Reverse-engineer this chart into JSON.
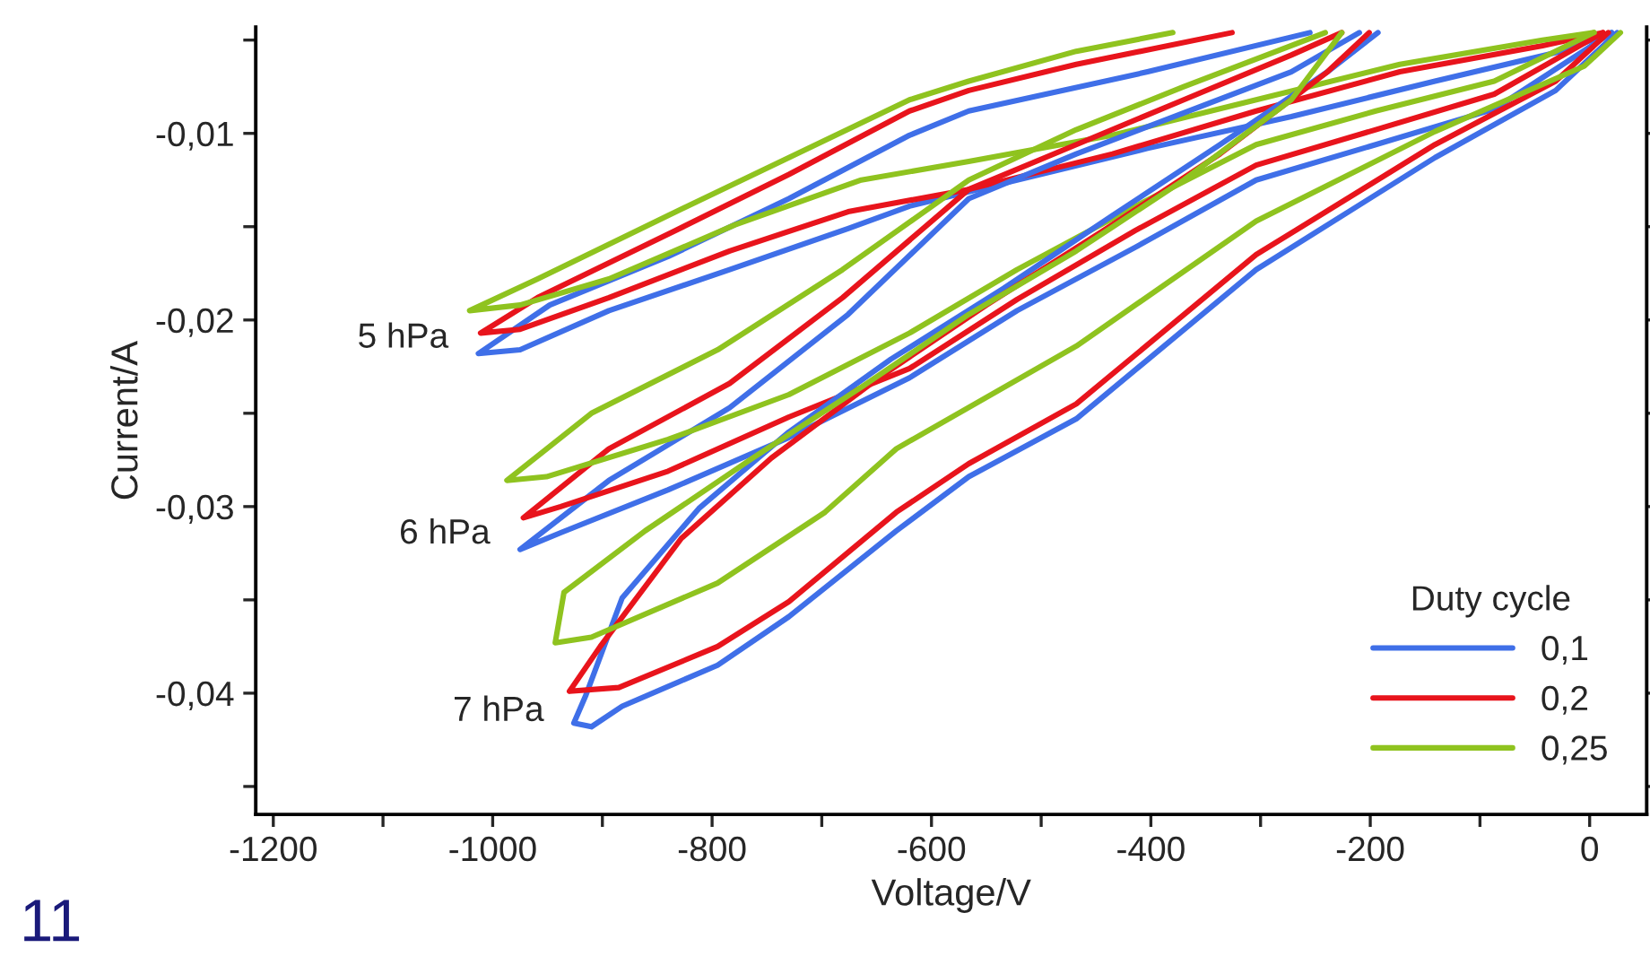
{
  "chart_data": {
    "type": "line",
    "xlabel": "Voltage/V",
    "ylabel": "Current/A",
    "legend_title": "Duty cycle",
    "legend": "bottom right",
    "xlim": [
      -1216,
      52
    ],
    "ylim": [
      -0.0465,
      -0.0043
    ],
    "xticks": [
      -1200,
      {
        "value": -1100,
        "label": null
      },
      -1000,
      {
        "value": -900,
        "label": null
      },
      -800,
      {
        "value": -700,
        "label": null
      },
      -600,
      {
        "value": -500,
        "label": null
      },
      -400,
      {
        "value": -300,
        "label": null
      },
      -200,
      {
        "value": -100,
        "label": null
      },
      0
    ],
    "yticks": [
      {
        "value": -0.045,
        "label": null
      },
      {
        "value": -0.04,
        "label": "-0,04"
      },
      {
        "value": -0.035,
        "label": null
      },
      {
        "value": -0.03,
        "label": "-0,03"
      },
      {
        "value": -0.025,
        "label": null
      },
      {
        "value": -0.02,
        "label": "-0,02"
      },
      {
        "value": -0.015,
        "label": null
      },
      {
        "value": -0.01,
        "label": "-0,01"
      },
      {
        "value": -0.005,
        "label": null
      }
    ],
    "annotations": [
      {
        "text": "5 hPa",
        "x": -1013,
        "y": -0.0218
      },
      {
        "text": "6 hPa",
        "x": -975,
        "y": -0.0323
      },
      {
        "text": "7 hPa",
        "x": -926,
        "y": -0.0418
      },
      "11"
    ],
    "series": [
      {
        "name": "0,1",
        "color": "#3f6fe8",
        "x": [
          -255,
          -403,
          -566,
          -620,
          -730,
          -840,
          -948,
          -1013,
          -975,
          -894,
          -784,
          -676,
          -620,
          -522,
          -403,
          -272,
          -141,
          -26,
          20
        ],
        "values": [
          -0.0046,
          -0.0067,
          -0.0088,
          -0.0101,
          -0.0135,
          -0.0166,
          -0.0192,
          -0.0218,
          -0.0216,
          -0.0195,
          -0.0173,
          -0.0151,
          -0.0139,
          -0.0125,
          -0.0108,
          -0.0091,
          -0.0072,
          -0.0056,
          -0.0046
        ]
      },
      {
        "name": "0,2",
        "color": "#e8141c",
        "x": [
          -326,
          -468,
          -566,
          -620,
          -730,
          -840,
          -959,
          -1011,
          -975,
          -894,
          -784,
          -676,
          -566,
          -435,
          -304,
          -173,
          -43,
          12
        ],
        "values": [
          -0.0046,
          -0.0063,
          -0.0077,
          -0.0088,
          -0.0122,
          -0.0154,
          -0.0188,
          -0.0207,
          -0.0205,
          -0.0188,
          -0.0163,
          -0.0142,
          -0.013,
          -0.0111,
          -0.0088,
          -0.0067,
          -0.0053,
          -0.0046
        ]
      },
      {
        "name": "0,25",
        "color": "#8fc31f",
        "x": [
          -380,
          -468,
          -566,
          -620,
          -730,
          -840,
          -959,
          -1021,
          -975,
          -894,
          -779,
          -664,
          -566,
          -435,
          -304,
          -173,
          -43,
          4
        ],
        "values": [
          -0.0046,
          -0.0056,
          -0.0072,
          -0.0082,
          -0.0113,
          -0.0144,
          -0.0178,
          -0.0195,
          -0.0192,
          -0.0178,
          -0.0149,
          -0.0125,
          -0.0115,
          -0.0101,
          -0.0082,
          -0.0063,
          -0.005,
          -0.0046
        ]
      },
      {
        "color": "#3f6fe8",
        "x": [
          -210,
          -272,
          -370,
          -468,
          -566,
          -676,
          -784,
          -894,
          -975,
          -938,
          -840,
          -730,
          -620,
          -522,
          -414,
          -304,
          -195,
          -87,
          20
        ],
        "values": [
          -0.0046,
          -0.0067,
          -0.0089,
          -0.0111,
          -0.0135,
          -0.0197,
          -0.0247,
          -0.0286,
          -0.0323,
          -0.0314,
          -0.0291,
          -0.0263,
          -0.0231,
          -0.0195,
          -0.0161,
          -0.0125,
          -0.0106,
          -0.0087,
          -0.0046
        ]
      },
      {
        "color": "#e8141c",
        "x": [
          -226,
          -272,
          -370,
          -468,
          -566,
          -681,
          -784,
          -894,
          -972,
          -938,
          -840,
          -730,
          -620,
          -522,
          -414,
          -304,
          -195,
          -87,
          12
        ],
        "values": [
          -0.0046,
          -0.0058,
          -0.0082,
          -0.0106,
          -0.013,
          -0.0188,
          -0.0234,
          -0.0269,
          -0.0306,
          -0.03,
          -0.0281,
          -0.0252,
          -0.0226,
          -0.0189,
          -0.0152,
          -0.0117,
          -0.0098,
          -0.0079,
          -0.0046
        ]
      },
      {
        "color": "#8fc31f",
        "x": [
          -241,
          -272,
          -370,
          -468,
          -566,
          -681,
          -795,
          -910,
          -987,
          -951,
          -840,
          -730,
          -620,
          -522,
          -414,
          -304,
          -195,
          -87,
          4
        ],
        "values": [
          -0.0046,
          -0.0053,
          -0.0075,
          -0.0098,
          -0.0125,
          -0.0173,
          -0.0216,
          -0.025,
          -0.0286,
          -0.0284,
          -0.0264,
          -0.024,
          -0.0207,
          -0.0173,
          -0.0139,
          -0.0106,
          -0.0088,
          -0.0072,
          -0.0046
        ]
      },
      {
        "color": "#3f6fe8",
        "x": [
          -193,
          -239,
          -337,
          -435,
          -534,
          -637,
          -730,
          -812,
          -882,
          -915,
          -926,
          -910,
          -882,
          -795,
          -730,
          -632,
          -566,
          -468,
          -304,
          -141,
          -31,
          25
        ],
        "values": [
          -0.0046,
          -0.0067,
          -0.0106,
          -0.0144,
          -0.0183,
          -0.0221,
          -0.026,
          -0.0301,
          -0.0349,
          -0.0401,
          -0.0416,
          -0.0418,
          -0.0407,
          -0.0385,
          -0.0359,
          -0.0313,
          -0.0284,
          -0.0253,
          -0.0173,
          -0.0113,
          -0.0077,
          -0.0046
        ]
      },
      {
        "color": "#e8141c",
        "x": [
          -201,
          -239,
          -337,
          -435,
          -550,
          -648,
          -746,
          -828,
          -902,
          -930,
          -885,
          -795,
          -730,
          -632,
          -566,
          -468,
          -304,
          -141,
          -31,
          17
        ],
        "values": [
          -0.0046,
          -0.0067,
          -0.0111,
          -0.0149,
          -0.0192,
          -0.0231,
          -0.0274,
          -0.0317,
          -0.0375,
          -0.0399,
          -0.0397,
          -0.0375,
          -0.0351,
          -0.0303,
          -0.0277,
          -0.0245,
          -0.0165,
          -0.0106,
          -0.0072,
          -0.0046
        ]
      },
      {
        "color": "#8fc31f",
        "x": [
          -226,
          -272,
          -370,
          -468,
          -566,
          -664,
          -763,
          -861,
          -935,
          -943,
          -910,
          -795,
          -697,
          -632,
          -468,
          -304,
          -141,
          -5,
          28
        ],
        "values": [
          -0.0046,
          -0.0082,
          -0.0125,
          -0.0163,
          -0.0197,
          -0.0236,
          -0.0274,
          -0.0313,
          -0.0346,
          -0.0373,
          -0.037,
          -0.0341,
          -0.0303,
          -0.0269,
          -0.0214,
          -0.0147,
          -0.0099,
          -0.0064,
          -0.0046
        ]
      }
    ]
  }
}
